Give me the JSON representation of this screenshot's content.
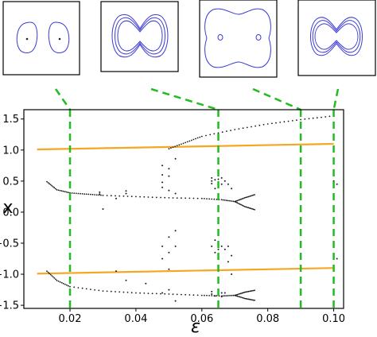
{
  "chart_data": {
    "type": "scatter",
    "xlabel": "ε",
    "ylabel": "x",
    "xlim": [
      0.006,
      0.103
    ],
    "ylim": [
      -1.55,
      1.65
    ],
    "grid": false,
    "colors": {
      "dots": "#1a1a1a",
      "orange": "#f5a623",
      "dashed": "#22bb22",
      "insets": "#3b3bd6"
    },
    "x_ticks": [
      {
        "value": 0.02,
        "label": "0.02"
      },
      {
        "value": 0.04,
        "label": "0.04"
      },
      {
        "value": 0.06,
        "label": "0.06"
      },
      {
        "value": 0.08,
        "label": "0.08"
      },
      {
        "value": 0.1,
        "label": "0.10"
      }
    ],
    "y_ticks": [
      {
        "value": 1.5,
        "label": "1.5"
      },
      {
        "value": 1.0,
        "label": "1.0"
      },
      {
        "value": 0.5,
        "label": "0.5"
      },
      {
        "value": 0.0,
        "label": "0.0"
      },
      {
        "value": -0.5,
        "label": "−0.5"
      },
      {
        "value": -1.0,
        "label": "−1.0"
      },
      {
        "value": -1.5,
        "label": "−1.5"
      }
    ],
    "orange_lines": [
      {
        "points": [
          [
            0.01,
            1.01
          ],
          [
            0.1,
            1.1
          ]
        ]
      },
      {
        "points": [
          [
            0.01,
            -0.99
          ],
          [
            0.1,
            -0.9
          ]
        ]
      }
    ],
    "curves": [
      {
        "points": [
          [
            0.05,
            1.02
          ],
          [
            0.055,
            1.12
          ],
          [
            0.06,
            1.22
          ],
          [
            0.07,
            1.33
          ],
          [
            0.08,
            1.42
          ],
          [
            0.09,
            1.49
          ],
          [
            0.1,
            1.55
          ]
        ]
      },
      {
        "points": [
          [
            0.013,
            0.49
          ],
          [
            0.016,
            0.36
          ],
          [
            0.02,
            0.31
          ],
          [
            0.025,
            0.29
          ],
          [
            0.03,
            0.27
          ],
          [
            0.04,
            0.25
          ],
          [
            0.05,
            0.23
          ],
          [
            0.06,
            0.22
          ],
          [
            0.066,
            0.2
          ],
          [
            0.07,
            0.17
          ]
        ]
      },
      {
        "points": [
          [
            0.07,
            0.17
          ],
          [
            0.073,
            0.23
          ],
          [
            0.076,
            0.28
          ]
        ]
      },
      {
        "points": [
          [
            0.07,
            0.17
          ],
          [
            0.073,
            0.09
          ],
          [
            0.076,
            0.04
          ]
        ]
      },
      {
        "points": [
          [
            0.013,
            -0.95
          ],
          [
            0.016,
            -1.1
          ],
          [
            0.02,
            -1.2
          ],
          [
            0.03,
            -1.27
          ],
          [
            0.04,
            -1.3
          ],
          [
            0.05,
            -1.32
          ],
          [
            0.06,
            -1.34
          ],
          [
            0.066,
            -1.35
          ],
          [
            0.07,
            -1.34
          ]
        ]
      },
      {
        "points": [
          [
            0.07,
            -1.34
          ],
          [
            0.073,
            -1.29
          ],
          [
            0.076,
            -1.26
          ]
        ]
      },
      {
        "points": [
          [
            0.07,
            -1.34
          ],
          [
            0.073,
            -1.39
          ],
          [
            0.076,
            -1.42
          ]
        ]
      }
    ],
    "scattered_points": [
      [
        0.029,
        0.32
      ],
      [
        0.029,
        0.29
      ],
      [
        0.03,
        0.05
      ],
      [
        0.034,
        0.22
      ],
      [
        0.034,
        -0.95
      ],
      [
        0.037,
        0.34
      ],
      [
        0.037,
        0.3
      ],
      [
        0.037,
        -1.1
      ],
      [
        0.043,
        -1.15
      ],
      [
        0.048,
        0.75
      ],
      [
        0.048,
        0.6
      ],
      [
        0.048,
        0.48
      ],
      [
        0.048,
        0.4
      ],
      [
        0.048,
        -0.55
      ],
      [
        0.048,
        -0.75
      ],
      [
        0.048,
        -1.3
      ],
      [
        0.05,
        0.7
      ],
      [
        0.05,
        0.58
      ],
      [
        0.05,
        0.35
      ],
      [
        0.05,
        -0.4
      ],
      [
        0.05,
        -0.65
      ],
      [
        0.05,
        -0.92
      ],
      [
        0.05,
        -1.25
      ],
      [
        0.052,
        0.86
      ],
      [
        0.052,
        0.3
      ],
      [
        0.052,
        -0.3
      ],
      [
        0.052,
        -0.55
      ],
      [
        0.052,
        -1.43
      ],
      [
        0.063,
        0.55
      ],
      [
        0.063,
        0.5
      ],
      [
        0.063,
        0.46
      ],
      [
        0.063,
        -0.55
      ],
      [
        0.063,
        -1.28
      ],
      [
        0.063,
        -1.32
      ],
      [
        0.064,
        0.52
      ],
      [
        0.064,
        0.38
      ],
      [
        0.064,
        -0.45
      ],
      [
        0.064,
        -0.65
      ],
      [
        0.064,
        -1.35
      ],
      [
        0.065,
        0.53
      ],
      [
        0.065,
        0.48
      ],
      [
        0.065,
        0.42
      ],
      [
        0.065,
        -0.5
      ],
      [
        0.065,
        -0.6
      ],
      [
        0.065,
        -1.27
      ],
      [
        0.065,
        -1.33
      ],
      [
        0.066,
        0.55
      ],
      [
        0.066,
        0.45
      ],
      [
        0.066,
        -0.55
      ],
      [
        0.066,
        -1.3
      ],
      [
        0.066,
        -1.36
      ],
      [
        0.067,
        0.5
      ],
      [
        0.067,
        -0.6
      ],
      [
        0.067,
        -1.3
      ],
      [
        0.068,
        0.45
      ],
      [
        0.068,
        -0.55
      ],
      [
        0.068,
        -0.8
      ],
      [
        0.069,
        0.38
      ],
      [
        0.069,
        -0.7
      ],
      [
        0.069,
        -1.0
      ],
      [
        0.1,
        0.5
      ],
      [
        0.1,
        0.47
      ],
      [
        0.1,
        -0.7
      ],
      [
        0.1,
        -1.3
      ],
      [
        0.101,
        0.45
      ],
      [
        0.101,
        -0.75
      ]
    ],
    "dashed_lines": [
      0.02,
      0.065,
      0.09,
      0.1
    ]
  }
}
